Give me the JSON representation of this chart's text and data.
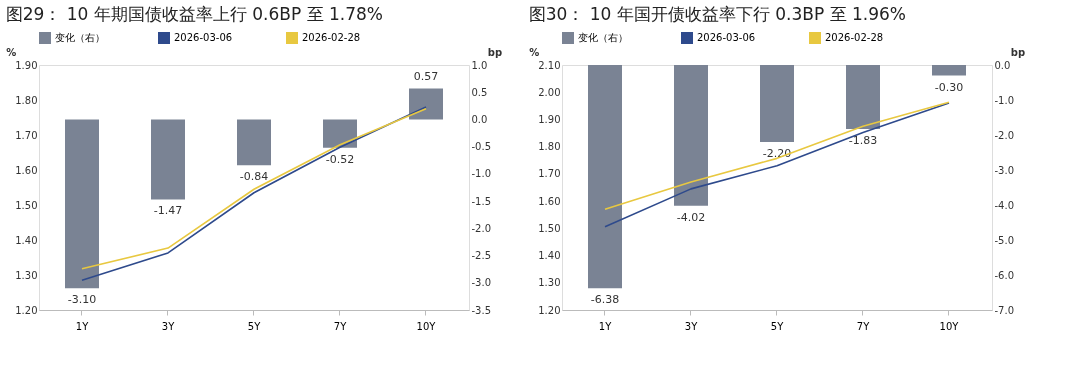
{
  "chart_data": [
    {
      "type": "line",
      "title": "图29：  10 年期国债收益率上行 0.6BP 至 1.78%",
      "ylabel": "%",
      "y2label": "bp",
      "categories": [
        "1Y",
        "3Y",
        "5Y",
        "7Y",
        "10Y"
      ],
      "series": [
        {
          "name": "变化（右）",
          "type": "bar",
          "axis": "y2",
          "color": "#7a8394",
          "values": [
            -3.1,
            -1.47,
            -0.84,
            -0.52,
            0.57
          ],
          "value_labels": [
            "-3.10",
            "-1.47",
            "-0.84",
            "-0.52",
            "0.57"
          ]
        },
        {
          "name": "2026-03-06",
          "color": "#2e4a8c",
          "values": [
            1.285,
            1.363,
            1.535,
            1.665,
            1.78
          ]
        },
        {
          "name": "2026-02-28",
          "color": "#e8c840",
          "values": [
            1.318,
            1.377,
            1.545,
            1.672,
            1.775
          ]
        }
      ],
      "ylim": [
        1.2,
        1.9
      ],
      "yticks": [
        {
          "value": 1.2,
          "label": "1.20"
        },
        {
          "value": 1.3,
          "label": "1.30"
        },
        {
          "value": 1.4,
          "label": "1.40"
        },
        {
          "value": 1.5,
          "label": "1.50"
        },
        {
          "value": 1.6,
          "label": "1.60"
        },
        {
          "value": 1.7,
          "label": "1.70"
        },
        {
          "value": 1.8,
          "label": "1.80"
        },
        {
          "value": 1.9,
          "label": "1.90"
        }
      ],
      "y2lim": [
        -3.5,
        1.0
      ],
      "y2ticks": [
        {
          "value": -3.5,
          "label": "-3.5"
        },
        {
          "value": -3.0,
          "label": "-3.0"
        },
        {
          "value": -2.5,
          "label": "-2.5"
        },
        {
          "value": -2.0,
          "label": "-2.0"
        },
        {
          "value": -1.5,
          "label": "-1.5"
        },
        {
          "value": -1.0,
          "label": "-1.0"
        },
        {
          "value": -0.5,
          "label": "-0.5"
        },
        {
          "value": 0,
          "label": "0.0"
        },
        {
          "value": 0.5,
          "label": "0.5"
        },
        {
          "value": 1.0,
          "label": "1.0"
        }
      ],
      "legend": "top",
      "grid": false
    },
    {
      "type": "line",
      "title": "图30：  10 年国开债收益率下行 0.3BP 至 1.96%",
      "ylabel": "%",
      "y2label": "bp",
      "categories": [
        "1Y",
        "3Y",
        "5Y",
        "7Y",
        "10Y"
      ],
      "series": [
        {
          "name": "变化（右）",
          "type": "bar",
          "axis": "y2",
          "color": "#7a8394",
          "values": [
            -6.38,
            -4.02,
            -2.2,
            -1.83,
            -0.3
          ],
          "value_labels": [
            "-6.38",
            "-4.02",
            "-2.20",
            "-1.83",
            "-0.30"
          ]
        },
        {
          "name": "2026-03-06",
          "color": "#2e4a8c",
          "values": [
            1.506,
            1.645,
            1.73,
            1.852,
            1.96
          ]
        },
        {
          "name": "2026-02-28",
          "color": "#e8c840",
          "values": [
            1.57,
            1.67,
            1.757,
            1.875,
            1.963
          ]
        }
      ],
      "ylim": [
        1.2,
        2.1
      ],
      "yticks": [
        {
          "value": 1.2,
          "label": "1.20"
        },
        {
          "value": 1.3,
          "label": "1.30"
        },
        {
          "value": 1.4,
          "label": "1.40"
        },
        {
          "value": 1.5,
          "label": "1.50"
        },
        {
          "value": 1.6,
          "label": "1.60"
        },
        {
          "value": 1.7,
          "label": "1.70"
        },
        {
          "value": 1.8,
          "label": "1.80"
        },
        {
          "value": 1.9,
          "label": "1.90"
        },
        {
          "value": 2.0,
          "label": "2.00"
        },
        {
          "value": 2.1,
          "label": "2.10"
        }
      ],
      "y2lim": [
        -7.0,
        0.0
      ],
      "y2ticks": [
        {
          "value": -7.0,
          "label": "-7.0"
        },
        {
          "value": -6.0,
          "label": "-6.0"
        },
        {
          "value": -5.0,
          "label": "-5.0"
        },
        {
          "value": -4.0,
          "label": "-4.0"
        },
        {
          "value": -3.0,
          "label": "-3.0"
        },
        {
          "value": -2.0,
          "label": "-2.0"
        },
        {
          "value": -1.0,
          "label": "-1.0"
        },
        {
          "value": 0,
          "label": "0.0"
        }
      ],
      "legend": "top",
      "grid": false
    }
  ]
}
